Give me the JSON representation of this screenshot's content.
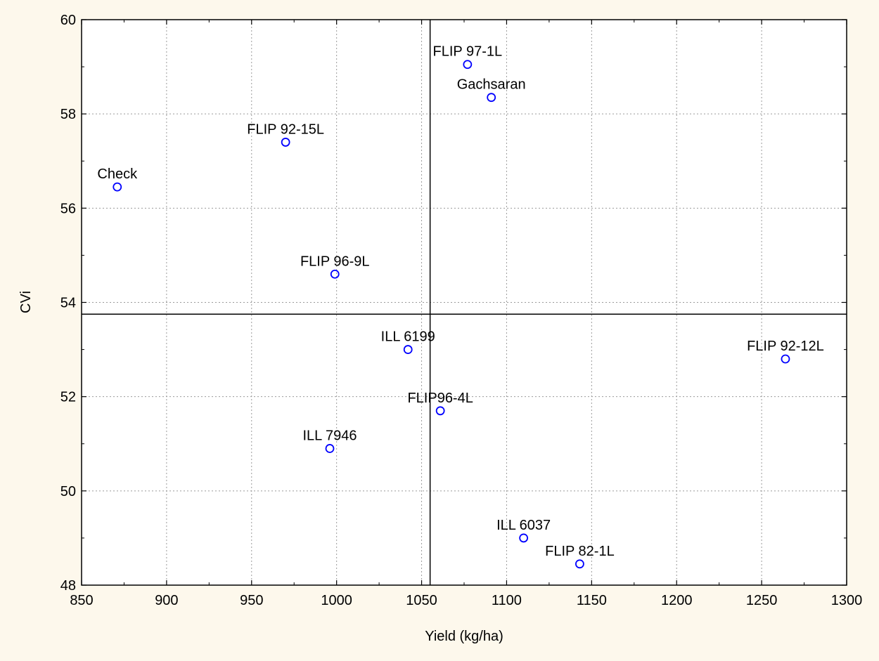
{
  "chart_data": {
    "type": "scatter",
    "title": "",
    "xlabel": "Yield (kg/ha)",
    "ylabel": "CVi",
    "xlim": [
      850,
      1300
    ],
    "ylim": [
      48,
      60
    ],
    "xticks": [
      850,
      900,
      950,
      1000,
      1050,
      1100,
      1150,
      1200,
      1250,
      1300
    ],
    "yticks": [
      48,
      50,
      52,
      54,
      56,
      58,
      60
    ],
    "grid": true,
    "reference_lines": {
      "x_mean": 1055,
      "y_mean": 53.75
    },
    "marker_color": "#0000ff",
    "points": [
      {
        "label": "FLIP 97-1L",
        "x": 1077,
        "y": 59.05
      },
      {
        "label": "Gachsaran",
        "x": 1091,
        "y": 58.35
      },
      {
        "label": "FLIP 92-15L",
        "x": 970,
        "y": 57.4
      },
      {
        "label": "Check",
        "x": 871,
        "y": 56.45
      },
      {
        "label": "FLIP 96-9L",
        "x": 999,
        "y": 54.6
      },
      {
        "label": "ILL 6199",
        "x": 1042,
        "y": 53.0
      },
      {
        "label": "FLIP 92-12L",
        "x": 1264,
        "y": 52.8
      },
      {
        "label": "FLIP96-4L",
        "x": 1061,
        "y": 51.7
      },
      {
        "label": "ILL 7946",
        "x": 996,
        "y": 50.9
      },
      {
        "label": "ILL 6037",
        "x": 1110,
        "y": 49.0
      },
      {
        "label": "FLIP 82-1L",
        "x": 1143,
        "y": 48.45
      }
    ]
  }
}
